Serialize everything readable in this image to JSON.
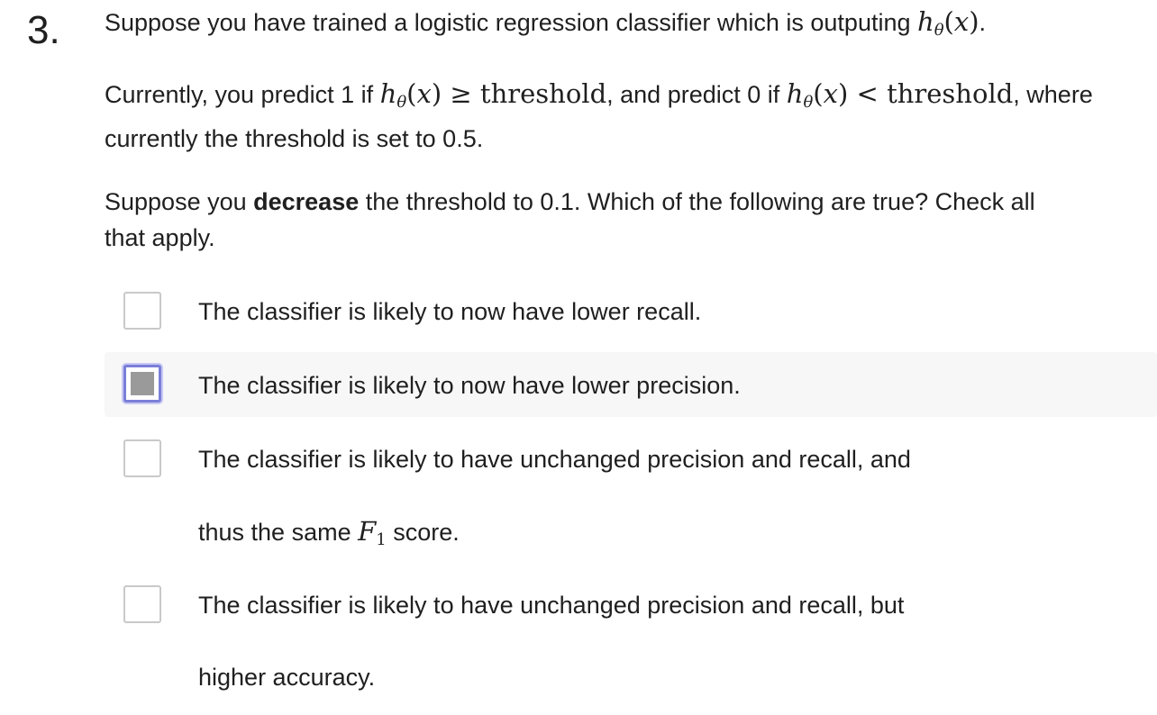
{
  "question": {
    "number": "3.",
    "intro_text": "Suppose you have trained a logistic regression classifier which is outputing ",
    "intro_math": "hθ(x)",
    "intro_end": ".",
    "current_rule_a": "Currently, you predict 1 if ",
    "current_rule_b": ", and predict 0 if ",
    "current_rule_c": ", where",
    "current_rule_d": "currently the threshold is set to 0.5.",
    "math_geq": "≥",
    "math_lt": "<",
    "math_threshold": "threshold",
    "prompt_a": "Suppose you ",
    "prompt_bold": "decrease",
    "prompt_b": " the threshold to 0.1. Which of the following are true? Check all",
    "prompt_c": "that apply."
  },
  "options": [
    {
      "line1": "The classifier is likely to now have lower recall.",
      "checked": false
    },
    {
      "line1": "The classifier is likely to now have lower precision.",
      "checked": false,
      "focused": true
    },
    {
      "line1": "The classifier is likely to have unchanged precision and recall, and",
      "line2_a": "thus the same ",
      "line2_math": "F1",
      "line2_b": " score.",
      "checked": false
    },
    {
      "line1": "The classifier is likely to have unchanged precision and recall, but",
      "line2_a": "higher accuracy.",
      "checked": false
    }
  ]
}
